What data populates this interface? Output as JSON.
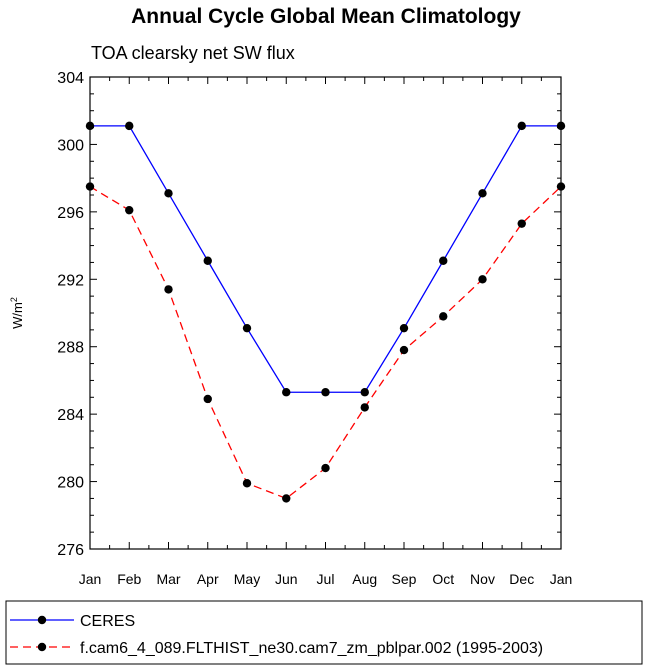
{
  "chart_data": {
    "type": "line",
    "title": "Annual Cycle Global Mean Climatology",
    "subtitle": "TOA clearsky net SW flux",
    "ylabel": "W/m",
    "ylabel_sup": "2",
    "xlabel": "",
    "ylim": [
      276,
      304
    ],
    "y_ticks": [
      276,
      280,
      284,
      288,
      292,
      296,
      300,
      304
    ],
    "categories": [
      "Jan",
      "Feb",
      "Mar",
      "Apr",
      "May",
      "Jun",
      "Jul",
      "Aug",
      "Sep",
      "Oct",
      "Nov",
      "Dec",
      "Jan"
    ],
    "series": [
      {
        "name": "CERES",
        "color": "#0000ff",
        "style": "solid",
        "values": [
          301.1,
          301.1,
          297.1,
          293.1,
          289.1,
          285.3,
          285.3,
          285.3,
          289.1,
          293.1,
          297.1,
          301.1,
          301.1
        ]
      },
      {
        "name": "f.cam6_4_089.FLTHIST_ne30.cam7_zm_pblpar.002 (1995-2003)",
        "color": "#ff0000",
        "style": "dashed",
        "values": [
          297.5,
          296.1,
          291.4,
          284.9,
          279.9,
          279.0,
          280.8,
          284.4,
          287.8,
          289.8,
          292.0,
          295.3,
          297.5
        ]
      }
    ],
    "legend_position": "bottom"
  }
}
